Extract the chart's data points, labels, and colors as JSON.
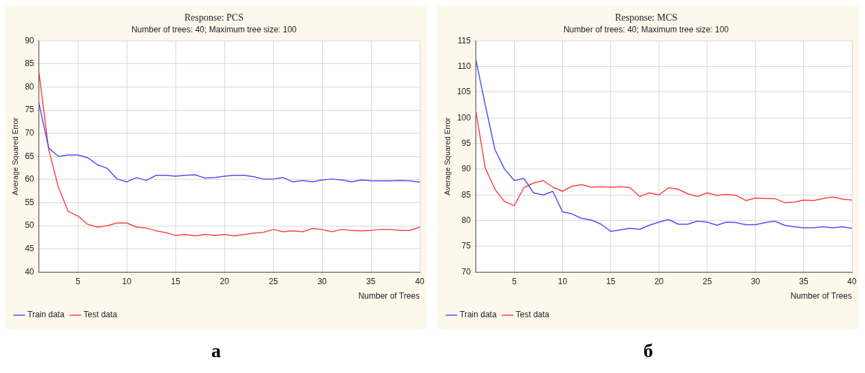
{
  "chart_data": [
    {
      "type": "line",
      "title": "Response: PCS",
      "subtitle": "Number of trees: 40; Maximum tree size: 100",
      "xlabel": "Number of Trees",
      "ylabel": "Average Squared Error",
      "x": [
        1,
        2,
        3,
        4,
        5,
        6,
        7,
        8,
        9,
        10,
        11,
        12,
        13,
        14,
        15,
        16,
        17,
        18,
        19,
        20,
        21,
        22,
        23,
        24,
        25,
        26,
        27,
        28,
        29,
        30,
        31,
        32,
        33,
        34,
        35,
        36,
        37,
        38,
        39,
        40
      ],
      "xlim": [
        1,
        40
      ],
      "xticks": [
        5,
        10,
        15,
        20,
        25,
        30,
        35,
        40
      ],
      "ylim": [
        40,
        90
      ],
      "yticks": [
        40,
        45,
        50,
        55,
        60,
        65,
        70,
        75,
        80,
        85,
        90
      ],
      "grid": true,
      "legend": "bottom left",
      "marker": "none",
      "annotations": [
        "а"
      ],
      "series": [
        {
          "name": "Train data",
          "color": "#4b4bff",
          "values": [
            76.5,
            66.8,
            65,
            65.3,
            65.3,
            64.7,
            63.2,
            62.4,
            60.1,
            59.5,
            60.4,
            59.8,
            60.9,
            60.9,
            60.7,
            60.9,
            61,
            60.3,
            60.4,
            60.7,
            60.9,
            60.9,
            60.6,
            60.1,
            60.1,
            60.4,
            59.5,
            59.8,
            59.5,
            59.9,
            60.1,
            59.9,
            59.5,
            59.9,
            59.7,
            59.7,
            59.7,
            59.8,
            59.7,
            59.4
          ]
        },
        {
          "name": "Test data",
          "color": "#ff4040",
          "values": [
            83.3,
            66.5,
            58.3,
            53.1,
            52.1,
            50.3,
            49.7,
            50,
            50.6,
            50.6,
            49.7,
            49.5,
            48.9,
            48.5,
            47.9,
            48.1,
            47.8,
            48.1,
            47.9,
            48.1,
            47.8,
            48.1,
            48.4,
            48.6,
            49.2,
            48.7,
            48.9,
            48.7,
            49.4,
            49.2,
            48.7,
            49.2,
            49,
            48.9,
            49,
            49.2,
            49.2,
            49,
            49,
            49.7
          ]
        }
      ]
    },
    {
      "type": "line",
      "title": "Response: MCS",
      "subtitle": "Number of trees: 40; Maximum tree size: 100",
      "xlabel": "Number of Trees",
      "ylabel": "Average Squared Error",
      "x": [
        1,
        2,
        3,
        4,
        5,
        6,
        7,
        8,
        9,
        10,
        11,
        12,
        13,
        14,
        15,
        16,
        17,
        18,
        19,
        20,
        21,
        22,
        23,
        24,
        25,
        26,
        27,
        28,
        29,
        30,
        31,
        32,
        33,
        34,
        35,
        36,
        37,
        38,
        39,
        40
      ],
      "xlim": [
        1,
        40
      ],
      "xticks": [
        5,
        10,
        15,
        20,
        25,
        30,
        35,
        40
      ],
      "ylim": [
        70,
        115
      ],
      "yticks": [
        70,
        75,
        80,
        85,
        90,
        95,
        100,
        105,
        110,
        115
      ],
      "grid": true,
      "legend": "bottom left",
      "marker": "none",
      "annotations": [
        "б"
      ],
      "series": [
        {
          "name": "Train data",
          "color": "#4b4bff",
          "values": [
            111.5,
            102.5,
            93.8,
            90,
            87.8,
            88.2,
            85.4,
            85,
            85.7,
            81.7,
            81.3,
            80.4,
            80.1,
            79.3,
            77.9,
            78.2,
            78.5,
            78.3,
            79.1,
            79.7,
            80.2,
            79.3,
            79.3,
            79.9,
            79.7,
            79.1,
            79.7,
            79.6,
            79.2,
            79.2,
            79.6,
            79.9,
            79.1,
            78.8,
            78.6,
            78.6,
            78.8,
            78.6,
            78.8,
            78.5
          ]
        },
        {
          "name": "Test data",
          "color": "#ff4040",
          "values": [
            101.5,
            90.2,
            86.1,
            83.7,
            82.9,
            86.4,
            87.3,
            87.8,
            86.5,
            85.7,
            86.7,
            87,
            86.5,
            86.6,
            86.5,
            86.6,
            86.4,
            84.7,
            85.4,
            85,
            86.4,
            86.1,
            85.2,
            84.7,
            85.4,
            84.9,
            85.1,
            84.9,
            83.9,
            84.4,
            84.3,
            84.3,
            83.5,
            83.6,
            84,
            83.9,
            84.3,
            84.6,
            84.2,
            84
          ]
        }
      ]
    }
  ]
}
